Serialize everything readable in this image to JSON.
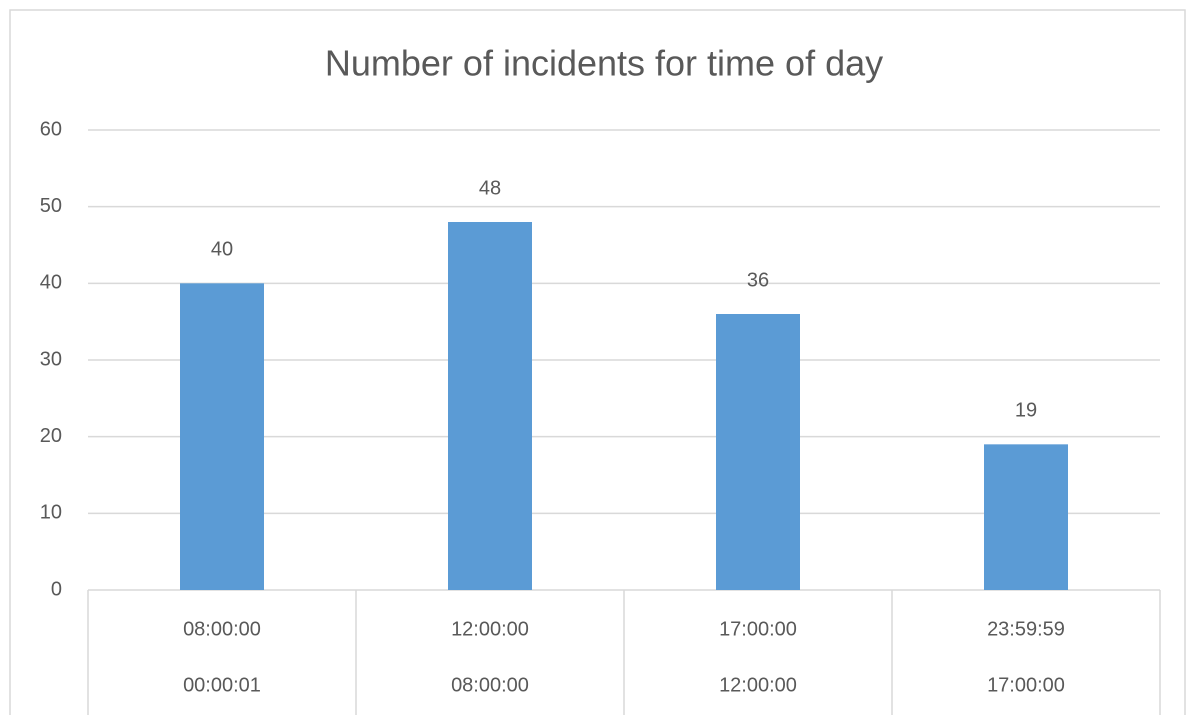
{
  "chart_data": {
    "type": "bar",
    "title": "Number of incidents for time of day",
    "categories": [
      [
        "08:00:00",
        "00:00:01"
      ],
      [
        "12:00:00",
        "08:00:00"
      ],
      [
        "17:00:00",
        "12:00:00"
      ],
      [
        "23:59:59",
        "17:00:00"
      ]
    ],
    "values": [
      40,
      48,
      36,
      19
    ],
    "color": "#5b9bd5",
    "ylim": [
      0,
      60
    ],
    "yticks": [
      0,
      10,
      20,
      30,
      40,
      50,
      60
    ],
    "grid": true
  }
}
